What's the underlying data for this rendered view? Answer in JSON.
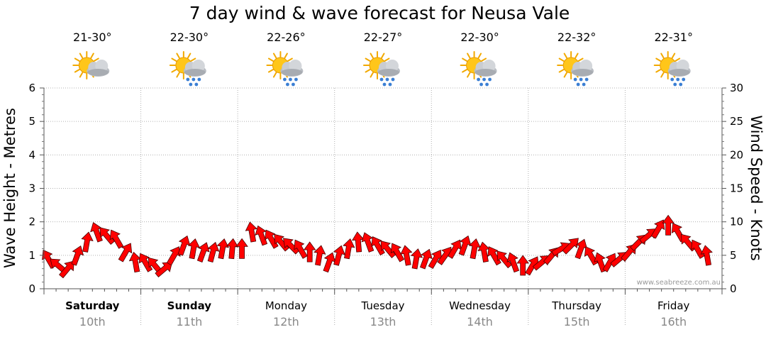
{
  "chart_data": {
    "type": "line",
    "title": "7 day wind & wave forecast for Neusa Vale",
    "ylabel_left": "Wave Height - Metres",
    "ylabel_right": "Wind Speed - Knots",
    "ylim_left": [
      0,
      6
    ],
    "ylim_right": [
      0,
      30
    ],
    "yticks_left": [
      "0",
      "1",
      "2",
      "3",
      "4",
      "5",
      "6"
    ],
    "yticks_right": [
      "0",
      "5",
      "10",
      "15",
      "20",
      "25",
      "30"
    ],
    "grid": true,
    "watermark": "www.seabreeze.com.au",
    "colors": {
      "arrow": "#ff0000",
      "arrow_outline": "#4a0000",
      "grid": "#b0b0b0"
    },
    "days": [
      {
        "name": "Saturday",
        "date": "10th",
        "temp": "21-30°",
        "icon": "partly-cloudy-icon",
        "bold": true
      },
      {
        "name": "Sunday",
        "date": "11th",
        "temp": "22-30°",
        "icon": "sun-cloud-rain-icon",
        "bold": true
      },
      {
        "name": "Monday",
        "date": "12th",
        "temp": "22-26°",
        "icon": "sun-cloud-rain-icon",
        "bold": false
      },
      {
        "name": "Tuesday",
        "date": "13th",
        "temp": "22-27°",
        "icon": "sun-cloud-rain-icon",
        "bold": false
      },
      {
        "name": "Wednesday",
        "date": "14th",
        "temp": "22-30°",
        "icon": "sun-cloud-rain-icon",
        "bold": false
      },
      {
        "name": "Thursday",
        "date": "15th",
        "temp": "22-32°",
        "icon": "sun-cloud-rain-icon",
        "bold": false
      },
      {
        "name": "Friday",
        "date": "16th",
        "temp": "22-31°",
        "icon": "sun-cloud-rain-icon",
        "bold": false
      }
    ],
    "series": [
      {
        "name": "wind",
        "unit": "knots",
        "x_day": [
          0,
          0.1,
          0.2,
          0.3,
          0.4,
          0.5,
          0.6,
          0.7,
          0.8,
          0.9,
          1.0,
          1.1,
          1.2,
          1.3,
          1.4,
          1.5,
          1.6,
          1.7,
          1.8,
          1.9,
          2.0,
          2.1,
          2.2,
          2.3,
          2.4,
          2.5,
          2.6,
          2.7,
          2.8,
          2.9,
          3.0,
          3.1,
          3.2,
          3.3,
          3.4,
          3.5,
          3.6,
          3.7,
          3.8,
          3.9,
          4.0,
          4.1,
          4.2,
          4.3,
          4.4,
          4.5,
          4.6,
          4.7,
          4.8,
          4.9,
          5.0,
          5.1,
          5.2,
          5.3,
          5.4,
          5.5,
          5.6,
          5.7,
          5.8,
          5.9,
          6.0,
          6.1,
          6.2,
          6.3,
          6.4,
          6.5,
          6.6,
          6.7,
          6.8
        ],
        "speed": [
          4.5,
          3.5,
          3.0,
          5.0,
          7.0,
          8.5,
          8.0,
          7.5,
          5.5,
          4.0,
          4.0,
          3.5,
          3.0,
          5.0,
          6.5,
          6.0,
          5.5,
          5.5,
          6.0,
          6.0,
          6.0,
          8.5,
          8.0,
          7.5,
          7.0,
          6.5,
          6.0,
          5.5,
          5.0,
          4.0,
          5.0,
          6.0,
          7.0,
          7.0,
          6.5,
          6.0,
          5.5,
          5.0,
          4.5,
          4.5,
          4.5,
          5.0,
          6.0,
          6.5,
          6.0,
          5.5,
          5.0,
          4.5,
          4.0,
          3.5,
          3.5,
          4.0,
          5.0,
          6.0,
          6.5,
          6.0,
          5.0,
          4.0,
          4.0,
          4.5,
          5.5,
          7.0,
          8.0,
          9.0,
          9.5,
          8.5,
          7.0,
          6.0,
          5.0
        ],
        "direction_deg": [
          120,
          140,
          50,
          70,
          80,
          110,
          130,
          120,
          60,
          100,
          120,
          130,
          40,
          60,
          70,
          80,
          70,
          75,
          80,
          85,
          90,
          100,
          110,
          120,
          130,
          135,
          120,
          90,
          80,
          70,
          75,
          80,
          95,
          110,
          120,
          130,
          120,
          100,
          80,
          70,
          60,
          55,
          60,
          70,
          80,
          100,
          120,
          130,
          110,
          90,
          60,
          40,
          50,
          30,
          45,
          70,
          120,
          110,
          60,
          40,
          50,
          45,
          40,
          60,
          90,
          120,
          130,
          120,
          100
        ]
      }
    ]
  }
}
